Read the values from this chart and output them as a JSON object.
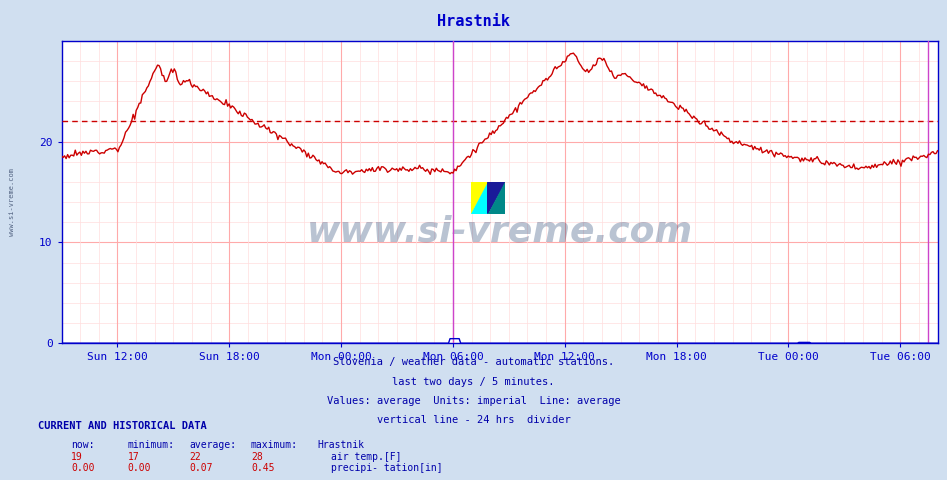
{
  "title": "Hrastnik",
  "title_color": "#0000cc",
  "background_color": "#d0dff0",
  "plot_bg_color": "#ffffff",
  "grid_color_major": "#ffaaaa",
  "grid_color_minor": "#ffdddd",
  "ylim": [
    0,
    30
  ],
  "yticks": [
    0,
    10,
    20
  ],
  "xlabel_ticks": [
    "Sun 12:00",
    "Sun 18:00",
    "Mon 00:00",
    "Mon 06:00",
    "Mon 12:00",
    "Mon 18:00",
    "Tue 00:00",
    "Tue 06:00"
  ],
  "tick_color": "#0000cc",
  "axis_color": "#0000cc",
  "avg_line_value": 22,
  "avg_line_color": "#cc0000",
  "vert_line_color": "#cc44cc",
  "watermark_text": "www.si-vreme.com",
  "watermark_color": "#1a3a6a",
  "watermark_alpha": 0.3,
  "footer_lines": [
    "Slovenia / weather data - automatic stations.",
    "last two days / 5 minutes.",
    "Values: average  Units: imperial  Line: average",
    "vertical line - 24 hrs  divider"
  ],
  "footer_color": "#0000aa",
  "legend_title": "CURRENT AND HISTORICAL DATA",
  "legend_headers": [
    "now:",
    "minimum:",
    "average:",
    "maximum:",
    "Hrastnik"
  ],
  "legend_air": [
    "19",
    "17",
    "22",
    "28",
    "air temp.[F]"
  ],
  "legend_precip": [
    "0.00",
    "0.00",
    "0.07",
    "0.45",
    "precipi- tation[in]"
  ],
  "legend_color": "#0000aa",
  "air_line_color": "#cc0000",
  "precip_line_color": "#0000cc",
  "air_swatch_color": "#cc0000",
  "precip_swatch_color": "#0000cc"
}
